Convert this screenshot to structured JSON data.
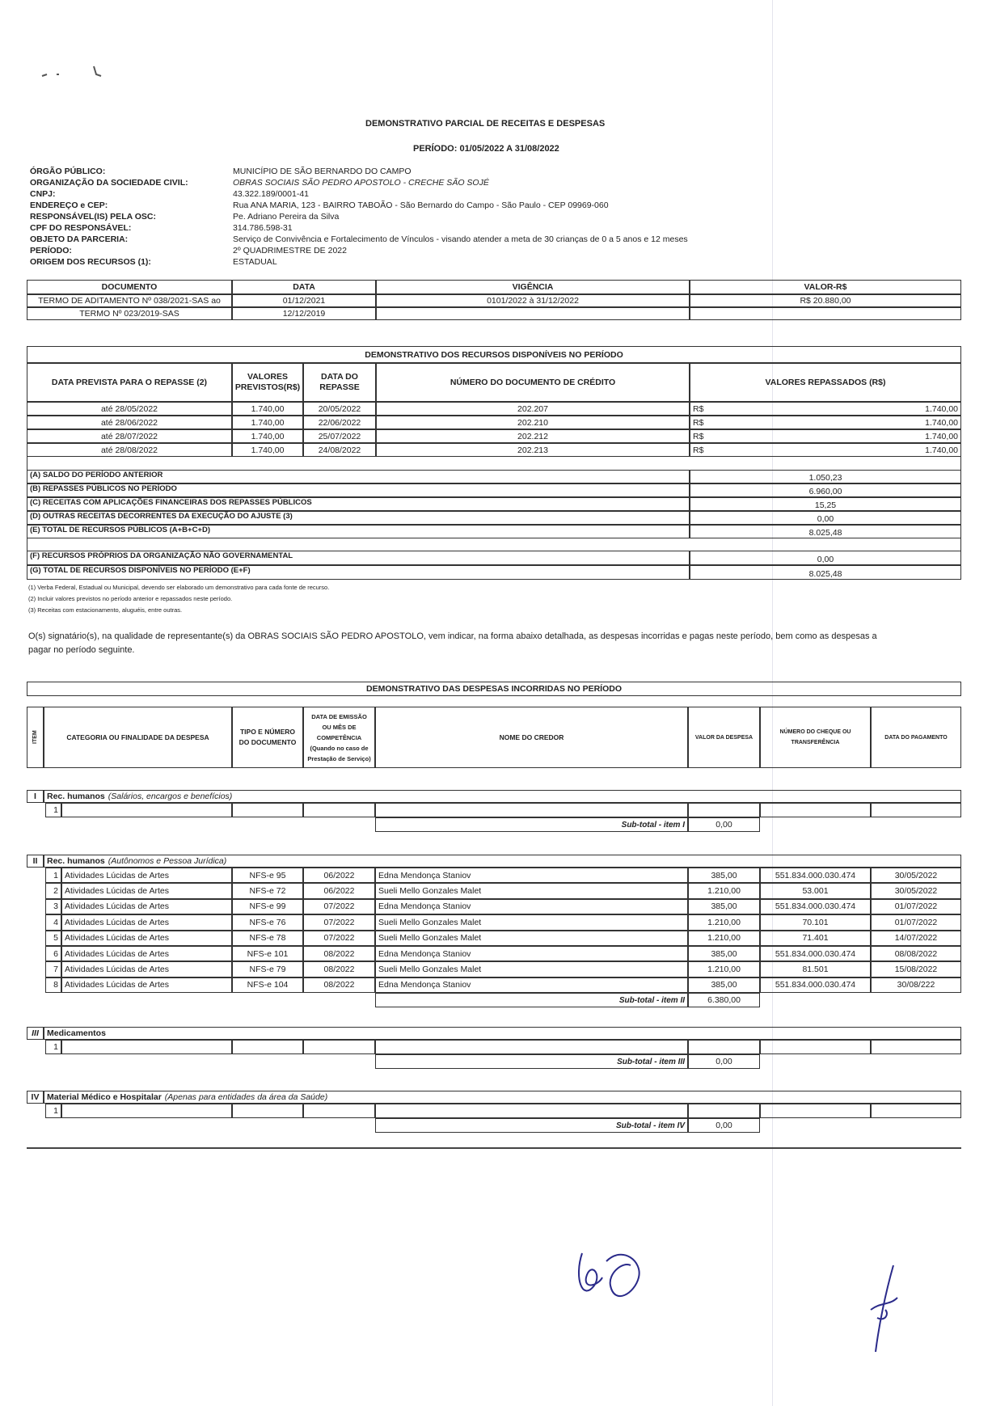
{
  "title": "DEMONSTRATIVO PARCIAL DE RECEITAS E DESPESAS",
  "periodo_header": "PERÍODO:  01/05/2022  A 31/08/2022",
  "info": [
    {
      "label": "ÓRGÃO PÚBLICO:",
      "value": "MUNICÍPIO DE SÃO BERNARDO DO CAMPO"
    },
    {
      "label": "ORGANIZAÇÃO DA SOCIEDADE CIVIL:",
      "value": "OBRAS SOCIAIS SÃO PEDRO APOSTOLO - CRECHE SÃO SOJÉ"
    },
    {
      "label": "CNPJ:",
      "value": "43.322.189/0001-41"
    },
    {
      "label": "ENDEREÇO e CEP:",
      "value": "Rua ANA MARIA, 123 - BAIRRO TABOÃO - São Bernardo do Campo - São Paulo - CEP 09969-060"
    },
    {
      "label": "RESPONSÁVEL(IS) PELA OSC:",
      "value": "Pe. Adriano Pereira da Silva"
    },
    {
      "label": "CPF DO RESPONSÁVEL:",
      "value": "314.786.598-31"
    },
    {
      "label": "OBJETO DA PARCERIA:",
      "value": "Serviço de Convivência e Fortalecimento de Vínculos - visando atender a meta de 30 crianças de 0 a 5 anos e 12 meses"
    },
    {
      "label": "PERÍODO:",
      "value": "2º QUADRIMESTRE DE 2022"
    },
    {
      "label": "ORIGEM DOS RECURSOS (1):",
      "value": "ESTADUAL"
    }
  ],
  "documents": {
    "headers": [
      "DOCUMENTO",
      "DATA",
      "VIGÊNCIA",
      "VALOR-R$"
    ],
    "rows": [
      [
        "TERMO DE ADITAMENTO Nº 038/2021-SAS ao",
        "01/12/2021",
        "0101/2022 à 31/12/2022",
        "R$ 20.880,00"
      ],
      [
        "TERMO  Nº  023/2019-SAS",
        "12/12/2019",
        "",
        ""
      ]
    ]
  },
  "recursos": {
    "title": "DEMONSTRATIVO DOS RECURSOS DISPONÍVEIS NO PERÍODO",
    "headers": [
      "DATA PREVISTA PARA O REPASSE (2)",
      "VALORES PREVISTOS(R$)",
      "DATA DO REPASSE",
      "NÚMERO DO DOCUMENTO DE CRÉDITO",
      "VALORES REPASSADOS (R$)"
    ],
    "rows": [
      [
        "até  28/05/2022",
        "1.740,00",
        "20/05/2022",
        "202.207",
        "R$",
        "1.740,00"
      ],
      [
        "até  28/06/2022",
        "1.740,00",
        "22/06/2022",
        "202.210",
        "R$",
        "1.740,00"
      ],
      [
        "até  28/07/2022",
        "1.740,00",
        "25/07/2022",
        "202.212",
        "R$",
        "1.740,00"
      ],
      [
        "até  28/08/2022",
        "1.740,00",
        "24/08/2022",
        "202.213",
        "R$",
        "1.740,00"
      ]
    ],
    "summary": [
      {
        "label": "(A)   SALDO DO PERÍODO ANTERIOR",
        "value": "1.050,23"
      },
      {
        "label": "(B)   REPASSES PÚBLICOS NO PERÍODO",
        "value": "6.960,00"
      },
      {
        "label": "(C)   RECEITAS COM APLICAÇÕES FINANCEIRAS DOS REPASSES PÚBLICOS",
        "value": "15,25"
      },
      {
        "label": "(D)   OUTRAS RECEITAS DECORRENTES DA EXECUÇÃO DO AJUSTE (3)",
        "value": "0,00"
      },
      {
        "label": "(E)   TOTAL DE RECURSOS PÚBLICOS (A+B+C+D)",
        "value": "8.025,48"
      }
    ],
    "summary2": [
      {
        "label": "(F)   RECURSOS PRÓPRIOS DA ORGANIZAÇÃO NÃO GOVERNAMENTAL",
        "value": "0,00"
      },
      {
        "label": "(G)   TOTAL DE RECURSOS DISPONÍVEIS NO PERÍODO (E+F)",
        "value": "8.025,48"
      }
    ]
  },
  "footnotes": [
    "(1) Verba Federal, Estadual ou Municipal, devendo ser elaborado um demonstrativo para cada fonte de recurso.",
    "(2) Incluir valores previstos no período anterior e repassados neste período.",
    "(3) Receitas com estacionamento, aluguéis, entre outras."
  ],
  "paragraph": [
    "O(s) signatário(s), na qualidade de representante(s) da OBRAS SOCIAIS SÃO PEDRO APOSTOLO, vem indicar, na forma abaixo detalhada, as despesas incorridas e pagas neste período, bem como as despesas a",
    "pagar no período seguinte."
  ],
  "despesas": {
    "title": "DEMONSTRATIVO DAS DESPESAS INCORRIDAS NO PERÍODO",
    "headers": [
      "ITEM",
      "CATEGORIA OU FINALIDADE DA DESPESA",
      "TIPO E NÚMERO DO DOCUMENTO",
      "DATA DE EMISSÃO OU MÊS DE COMPETÊNCIA (Quando no caso de Prestação de Serviço)",
      "NOME DO CREDOR",
      "VALOR DA DESPESA",
      "NÚMERO DO CHEQUE OU TRANSFERÊNCIA",
      "DATA DO PAGAMENTO"
    ],
    "sections": [
      {
        "numeral": "I",
        "title": "Rec. humanos",
        "subtitle": "(Salários, encargos e benefícios)",
        "subtotal_label": "Sub-total - item I",
        "subtotal": "0,00",
        "rows": [
          [
            "1",
            "",
            "",
            "",
            "",
            "",
            "",
            ""
          ]
        ]
      },
      {
        "numeral": "II",
        "title": "Rec. humanos",
        "subtitle": "(Autônomos e Pessoa Jurídica)",
        "subtotal_label": "Sub-total - item II",
        "subtotal": "6.380,00",
        "rows": [
          [
            "1",
            "Atividades Lúcidas de Artes",
            "NFS-e 95",
            "06/2022",
            "Edna Mendonça Staniov",
            "385,00",
            "551.834.000.030.474",
            "30/05/2022"
          ],
          [
            "2",
            "Atividades Lúcidas de Artes",
            "NFS-e 72",
            "06/2022",
            "Sueli Mello Gonzales Malet",
            "1.210,00",
            "53.001",
            "30/05/2022"
          ],
          [
            "3",
            "Atividades Lúcidas de Artes",
            "NFS-e 99",
            "07/2022",
            "Edna Mendonça Staniov",
            "385,00",
            "551.834.000.030.474",
            "01/07/2022"
          ],
          [
            "4",
            "Atividades Lúcidas de Artes",
            "NFS-e 76",
            "07/2022",
            "Sueli Mello Gonzales Malet",
            "1.210,00",
            "70.101",
            "01/07/2022"
          ],
          [
            "5",
            "Atividades Lúcidas de Artes",
            "NFS-e 78",
            "07/2022",
            "Sueli Mello Gonzales Malet",
            "1.210,00",
            "71.401",
            "14/07/2022"
          ],
          [
            "6",
            "Atividades Lúcidas de Artes",
            "NFS-e 101",
            "08/2022",
            "Edna Mendonça Staniov",
            "385,00",
            "551.834.000.030.474",
            "08/08/2022"
          ],
          [
            "7",
            "Atividades Lúcidas de Artes",
            "NFS-e 79",
            "08/2022",
            "Sueli Mello Gonzales Malet",
            "1.210,00",
            "81.501",
            "15/08/2022"
          ],
          [
            "8",
            "Atividades Lúcidas de Artes",
            "NFS-e 104",
            "08/2022",
            "Edna Mendonça Staniov",
            "385,00",
            "551.834.000.030.474",
            "30/08/222"
          ]
        ]
      },
      {
        "numeral": "III",
        "title": "Medicamentos",
        "subtitle": "",
        "subtotal_label": "Sub-total - item III",
        "subtotal": "0,00",
        "rows": [
          [
            "1",
            "",
            "",
            "",
            "",
            "",
            "",
            ""
          ]
        ]
      },
      {
        "numeral": "IV",
        "title": "Material Médico e Hospitalar",
        "subtitle": "(Apenas para entidades da área da Saúde)",
        "subtotal_label": "Sub-total - item IV",
        "subtotal": "0,00",
        "rows": [
          [
            "1",
            "",
            "",
            "",
            "",
            "",
            "",
            ""
          ]
        ]
      }
    ]
  },
  "colors": {
    "ink": "#222222",
    "signature": "#2a2a8a"
  }
}
